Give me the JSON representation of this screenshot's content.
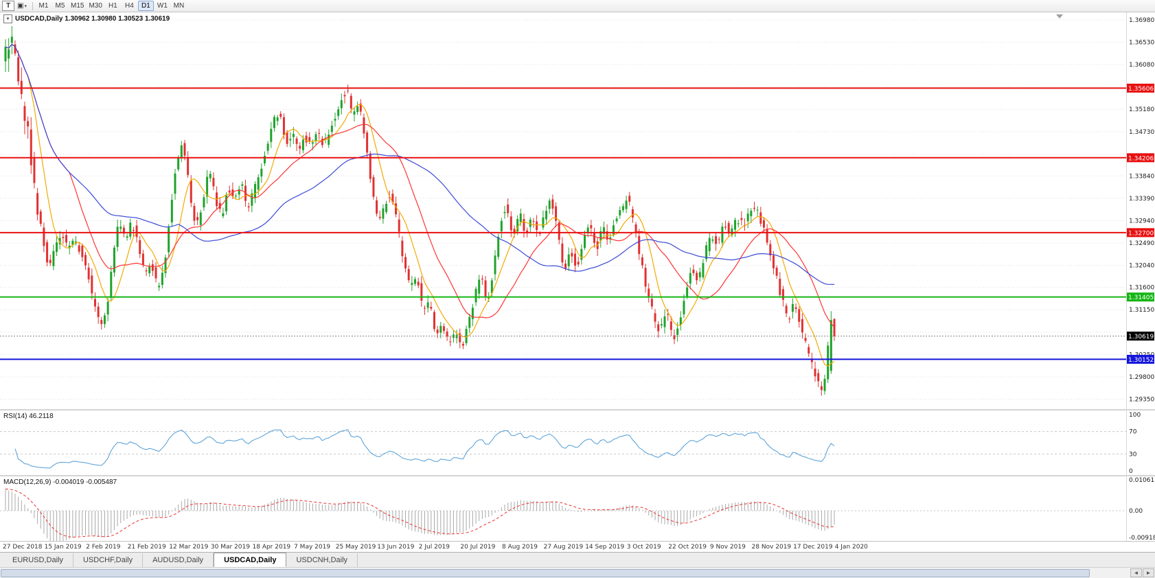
{
  "toolbar": {
    "text_tool": "T",
    "layout_icon": "▣",
    "dropdown_caret": "▾",
    "timeframes": [
      "M1",
      "M5",
      "M15",
      "M30",
      "H1",
      "H4",
      "D1",
      "W1",
      "MN"
    ],
    "active_timeframe": "D1"
  },
  "main_chart": {
    "dropdown_glyph": "▼",
    "title_text": "USDCAD,Daily 1.30962 1.30980 1.30523 1.30619"
  },
  "rsi_panel": {
    "label": "RSI(14) 46.2118"
  },
  "macd_panel": {
    "label": "MACD(12,26,9) -0.004019 -0.005487"
  },
  "tabs": {
    "items": [
      {
        "label": "EURUSD,Daily",
        "active": false
      },
      {
        "label": "USDCHF,Daily",
        "active": false
      },
      {
        "label": "AUDUSD,Daily",
        "active": false
      },
      {
        "label": "USDCAD,Daily",
        "active": true
      },
      {
        "label": "USDCNH,Daily",
        "active": false
      }
    ],
    "scroll_left": "◄",
    "scroll_right": "►"
  },
  "chart_data": {
    "type": "candlestick",
    "symbol": "USDCAD",
    "timeframe": "Daily",
    "current_ohlc": {
      "open": 1.30962,
      "high": 1.3098,
      "low": 1.30523,
      "close": 1.30619
    },
    "prev_candle": {
      "open": 1.2992,
      "high": 1.3112,
      "low": 1.2986,
      "close": 1.3094
    },
    "current_price": {
      "value": 1.30619,
      "label": "1.30619"
    },
    "y_range": [
      1.2915,
      1.3713
    ],
    "price_axis_ticks": [
      "1.36980",
      "1.36530",
      "1.36080",
      "1.35630",
      "1.35180",
      "1.34730",
      "1.34280",
      "1.33840",
      "1.33390",
      "1.32940",
      "1.32490",
      "1.32040",
      "1.31600",
      "1.31150",
      "1.30700",
      "1.30250",
      "1.29800",
      "1.29350"
    ],
    "horizontal_lines": [
      {
        "price": 1.35606,
        "label": "1.35606",
        "color": "#e81010",
        "type": "resistance"
      },
      {
        "price": 1.34206,
        "label": "1.34206",
        "color": "#e81010",
        "type": "resistance"
      },
      {
        "price": 1.327,
        "label": "1.32700",
        "color": "#e81010",
        "type": "resistance"
      },
      {
        "price": 1.31405,
        "label": "1.31405",
        "color": "#14b514",
        "type": "support"
      },
      {
        "price": 1.30152,
        "label": "1.30152",
        "color": "#1414dc",
        "type": "support"
      }
    ],
    "date_labels": [
      "27 Dec 2018",
      "15 Jan 2019",
      "2 Feb 2019",
      "21 Feb 2019",
      "12 Mar 2019",
      "30 Mar 2019",
      "18 Apr 2019",
      "7 May 2019",
      "25 May 2019",
      "13 Jun 2019",
      "2 Jul 2019",
      "20 Jul 2019",
      "8 Aug 2019",
      "27 Aug 2019",
      "14 Sep 2019",
      "3 Oct 2019",
      "22 Oct 2019",
      "9 Nov 2019",
      "28 Nov 2019",
      "17 Dec 2019",
      "4 Jan 2020"
    ],
    "bars_per_label": 13,
    "bar_count": 260,
    "colors": {
      "background": "#ffffff",
      "grid": "#dcdcdc",
      "up": "#1fa32b",
      "down": "#e03131"
    },
    "moving_averages": [
      {
        "period": 8,
        "color": "#f2a900"
      },
      {
        "period": 21,
        "color": "#ff3232"
      },
      {
        "period": 55,
        "color": "#3a49d6"
      }
    ],
    "rsi": {
      "period": 14,
      "value": 46.2118,
      "levels": [
        100,
        70,
        30,
        0
      ],
      "color": "#4f9bd5"
    },
    "macd": {
      "fast": 12,
      "slow": 26,
      "signal": 9,
      "value": -0.004019,
      "signal_value": -0.005487,
      "axis_ticks": [
        "0.010615",
        "0.00",
        "-0.00918"
      ],
      "histogram_color": "#a8a8a8",
      "signal_color": "#e83030"
    },
    "price_path": [
      [
        0,
        1.3615
      ],
      [
        2,
        1.366
      ],
      [
        4,
        1.3598
      ],
      [
        6,
        1.352
      ],
      [
        8,
        1.3445
      ],
      [
        10,
        1.333
      ],
      [
        12,
        1.3262
      ],
      [
        14,
        1.3195
      ],
      [
        16,
        1.3245
      ],
      [
        18,
        1.3272
      ],
      [
        20,
        1.3235
      ],
      [
        22,
        1.3262
      ],
      [
        24,
        1.3228
      ],
      [
        26,
        1.3195
      ],
      [
        28,
        1.313
      ],
      [
        30,
        1.3085
      ],
      [
        32,
        1.311
      ],
      [
        34,
        1.322
      ],
      [
        36,
        1.3295
      ],
      [
        38,
        1.326
      ],
      [
        40,
        1.329
      ],
      [
        42,
        1.324
      ],
      [
        44,
        1.318
      ],
      [
        46,
        1.321
      ],
      [
        48,
        1.3155
      ],
      [
        50,
        1.32
      ],
      [
        52,
        1.331
      ],
      [
        54,
        1.342
      ],
      [
        56,
        1.345
      ],
      [
        58,
        1.335
      ],
      [
        60,
        1.328
      ],
      [
        62,
        1.333
      ],
      [
        64,
        1.34
      ],
      [
        66,
        1.334
      ],
      [
        68,
        1.33
      ],
      [
        70,
        1.336
      ],
      [
        72,
        1.333
      ],
      [
        74,
        1.337
      ],
      [
        76,
        1.332
      ],
      [
        78,
        1.3355
      ],
      [
        80,
        1.339
      ],
      [
        82,
        1.344
      ],
      [
        84,
        1.349
      ],
      [
        86,
        1.3515
      ],
      [
        88,
        1.345
      ],
      [
        90,
        1.347
      ],
      [
        92,
        1.343
      ],
      [
        94,
        1.3465
      ],
      [
        96,
        1.344
      ],
      [
        98,
        1.3475
      ],
      [
        100,
        1.3445
      ],
      [
        102,
        1.348
      ],
      [
        104,
        1.3515
      ],
      [
        106,
        1.3545
      ],
      [
        107,
        1.356
      ],
      [
        109,
        1.35
      ],
      [
        111,
        1.353
      ],
      [
        113,
        1.345
      ],
      [
        115,
        1.336
      ],
      [
        117,
        1.3285
      ],
      [
        119,
        1.333
      ],
      [
        121,
        1.335
      ],
      [
        123,
        1.328
      ],
      [
        125,
        1.321
      ],
      [
        127,
        1.3155
      ],
      [
        129,
        1.3185
      ],
      [
        131,
        1.311
      ],
      [
        133,
        1.313
      ],
      [
        135,
        1.3065
      ],
      [
        137,
        1.309
      ],
      [
        139,
        1.3045
      ],
      [
        141,
        1.307
      ],
      [
        143,
        1.303
      ],
      [
        145,
        1.309
      ],
      [
        147,
        1.314
      ],
      [
        149,
        1.318
      ],
      [
        151,
        1.313
      ],
      [
        153,
        1.32
      ],
      [
        155,
        1.329
      ],
      [
        157,
        1.333
      ],
      [
        159,
        1.326
      ],
      [
        161,
        1.331
      ],
      [
        163,
        1.327
      ],
      [
        165,
        1.33
      ],
      [
        167,
        1.326
      ],
      [
        169,
        1.331
      ],
      [
        171,
        1.334
      ],
      [
        173,
        1.328
      ],
      [
        175,
        1.318
      ],
      [
        177,
        1.3235
      ],
      [
        179,
        1.3195
      ],
      [
        181,
        1.325
      ],
      [
        183,
        1.329
      ],
      [
        185,
        1.3235
      ],
      [
        187,
        1.328
      ],
      [
        189,
        1.3245
      ],
      [
        191,
        1.33
      ],
      [
        193,
        1.332
      ],
      [
        195,
        1.334
      ],
      [
        197,
        1.328
      ],
      [
        199,
        1.321
      ],
      [
        201,
        1.315
      ],
      [
        203,
        1.31
      ],
      [
        205,
        1.307
      ],
      [
        207,
        1.311
      ],
      [
        209,
        1.3055
      ],
      [
        211,
        1.3095
      ],
      [
        213,
        1.315
      ],
      [
        215,
        1.32
      ],
      [
        217,
        1.317
      ],
      [
        219,
        1.323
      ],
      [
        221,
        1.327
      ],
      [
        223,
        1.3245
      ],
      [
        225,
        1.329
      ],
      [
        227,
        1.3265
      ],
      [
        229,
        1.33
      ],
      [
        231,
        1.3285
      ],
      [
        233,
        1.331
      ],
      [
        235,
        1.332
      ],
      [
        237,
        1.3285
      ],
      [
        239,
        1.3235
      ],
      [
        241,
        1.3185
      ],
      [
        243,
        1.314
      ],
      [
        245,
        1.3095
      ],
      [
        247,
        1.313
      ],
      [
        249,
        1.308
      ],
      [
        251,
        1.303
      ],
      [
        253,
        1.299
      ],
      [
        255,
        1.296
      ],
      [
        256,
        1.2958
      ],
      [
        257,
        1.2995
      ],
      [
        258,
        1.3095
      ],
      [
        259,
        1.3062
      ]
    ]
  }
}
